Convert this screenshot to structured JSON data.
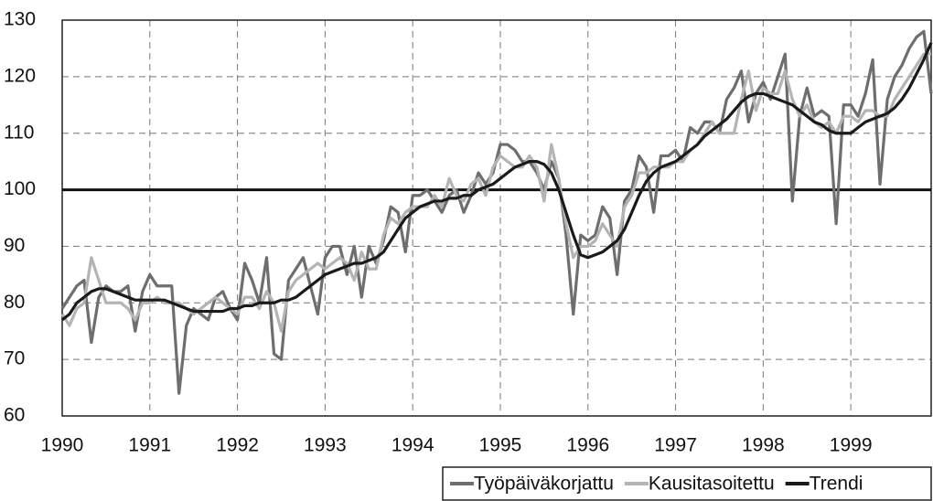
{
  "chart_data": {
    "type": "line",
    "x": [
      1990,
      1990.083,
      1990.167,
      1990.25,
      1990.333,
      1990.417,
      1990.5,
      1990.583,
      1990.667,
      1990.75,
      1990.833,
      1990.917,
      1991,
      1991.083,
      1991.167,
      1991.25,
      1991.333,
      1991.417,
      1991.5,
      1991.583,
      1991.667,
      1991.75,
      1991.833,
      1991.917,
      1992,
      1992.083,
      1992.167,
      1992.25,
      1992.333,
      1992.417,
      1992.5,
      1992.583,
      1992.667,
      1992.75,
      1992.833,
      1992.917,
      1993,
      1993.083,
      1993.167,
      1993.25,
      1993.333,
      1993.417,
      1993.5,
      1993.583,
      1993.667,
      1993.75,
      1993.833,
      1993.917,
      1994,
      1994.083,
      1994.167,
      1994.25,
      1994.333,
      1994.417,
      1994.5,
      1994.583,
      1994.667,
      1994.75,
      1994.833,
      1994.917,
      1995,
      1995.083,
      1995.167,
      1995.25,
      1995.333,
      1995.417,
      1995.5,
      1995.583,
      1995.667,
      1995.75,
      1995.833,
      1995.917,
      1996,
      1996.083,
      1996.167,
      1996.25,
      1996.333,
      1996.417,
      1996.5,
      1996.583,
      1996.667,
      1996.75,
      1996.833,
      1996.917,
      1997,
      1997.083,
      1997.167,
      1997.25,
      1997.333,
      1997.417,
      1997.5,
      1997.583,
      1997.667,
      1997.75,
      1997.833,
      1997.917,
      1998,
      1998.083,
      1998.167,
      1998.25,
      1998.333,
      1998.417,
      1998.5,
      1998.583,
      1998.667,
      1998.75,
      1998.833,
      1998.917,
      1999,
      1999.083,
      1999.167,
      1999.25,
      1999.333,
      1999.417,
      1999.5,
      1999.583,
      1999.667,
      1999.75,
      1999.833,
      1999.917
    ],
    "series": [
      {
        "name": "Työpäiväkorjattu",
        "color": "#6e6e6e",
        "values": [
          79,
          81,
          83,
          84,
          73,
          81,
          83,
          82,
          82,
          83,
          75,
          82,
          85,
          83,
          83,
          83,
          64,
          76,
          79,
          78,
          77,
          81,
          82,
          79,
          77,
          87,
          84,
          80,
          88,
          71,
          70,
          84,
          86,
          88,
          83,
          78,
          88,
          90,
          90,
          85,
          90,
          81,
          90,
          87,
          91,
          97,
          96,
          89,
          99,
          99,
          100,
          98,
          96,
          99,
          100,
          96,
          99,
          103,
          101,
          103,
          108,
          108,
          107,
          105,
          105,
          103,
          100,
          105,
          102,
          92,
          78,
          92,
          91,
          92,
          97,
          95,
          85,
          98,
          100,
          106,
          104,
          96,
          106,
          106,
          107,
          105,
          111,
          110,
          112,
          112,
          110,
          116,
          118,
          121,
          112,
          117,
          119,
          116,
          120,
          124,
          98,
          113,
          118,
          113,
          114,
          113,
          94,
          115,
          115,
          113,
          117,
          123,
          101,
          116,
          120,
          122,
          125,
          127,
          128,
          117
        ]
      },
      {
        "name": "Kausitasoitettu",
        "color": "#b4b4b4",
        "values": [
          78,
          76,
          79,
          80,
          88,
          84,
          80,
          80,
          80,
          79,
          77,
          80,
          80,
          81,
          80,
          80,
          80,
          79,
          78,
          79,
          80,
          81,
          80,
          79,
          78,
          81,
          81,
          79,
          82,
          80,
          75,
          82,
          84,
          85,
          86,
          87,
          86,
          87,
          88,
          87,
          84,
          89,
          86,
          86,
          92,
          95,
          94,
          96,
          97,
          97,
          97,
          99,
          97,
          102,
          99,
          98,
          101,
          102,
          99,
          104,
          106,
          105,
          104,
          104,
          106,
          104,
          98,
          108,
          102,
          94,
          88,
          90,
          90,
          91,
          94,
          92,
          90,
          97,
          99,
          103,
          103,
          104,
          104,
          104,
          105,
          105,
          107,
          108,
          110,
          112,
          110,
          110,
          110,
          116,
          121,
          114,
          118,
          117,
          117,
          121,
          116,
          113,
          115,
          112,
          111,
          112,
          110,
          113,
          113,
          112,
          114,
          114,
          113,
          113,
          116,
          118,
          120,
          122,
          124,
          124
        ]
      },
      {
        "name": "Trendi",
        "color": "#1a1a1a",
        "values": [
          77,
          78,
          80,
          81,
          82,
          82.5,
          82.5,
          82,
          81.5,
          81,
          80.5,
          80.5,
          80.5,
          80.5,
          80.5,
          80,
          79.5,
          79,
          78.5,
          78.5,
          78.5,
          78.5,
          78.5,
          79,
          79,
          79.5,
          79.5,
          80,
          80,
          80,
          80.5,
          80.5,
          81,
          82,
          83,
          84,
          85,
          85.5,
          86,
          86.5,
          87,
          87,
          87.5,
          88,
          89,
          91,
          93,
          95,
          96,
          97,
          97.5,
          98,
          98,
          98.5,
          98.5,
          99,
          99,
          100,
          100.5,
          101,
          102,
          103,
          104,
          104.5,
          105,
          105,
          104.5,
          103,
          100,
          96,
          92,
          88.5,
          88,
          88.5,
          89,
          90,
          91,
          93,
          96,
          99,
          101.5,
          103,
          104,
          104.5,
          105,
          106,
          107,
          108,
          109.5,
          110.5,
          111.5,
          112.5,
          114,
          115.5,
          116.5,
          117,
          117,
          116.5,
          116,
          115.5,
          115,
          114,
          113,
          112,
          111.5,
          110.5,
          110,
          110,
          110,
          111,
          112,
          112.5,
          113,
          113.5,
          114.5,
          116,
          118,
          120.5,
          123,
          126
        ]
      }
    ],
    "reference_line": 100,
    "xlim": [
      1990,
      1999.917
    ],
    "xticks": [
      1990,
      1991,
      1992,
      1993,
      1994,
      1995,
      1996,
      1997,
      1998,
      1999
    ],
    "ylim": [
      60,
      130
    ],
    "yticks": [
      60,
      70,
      80,
      90,
      100,
      110,
      120,
      130
    ],
    "grid": true,
    "legend": "bottom-right"
  }
}
